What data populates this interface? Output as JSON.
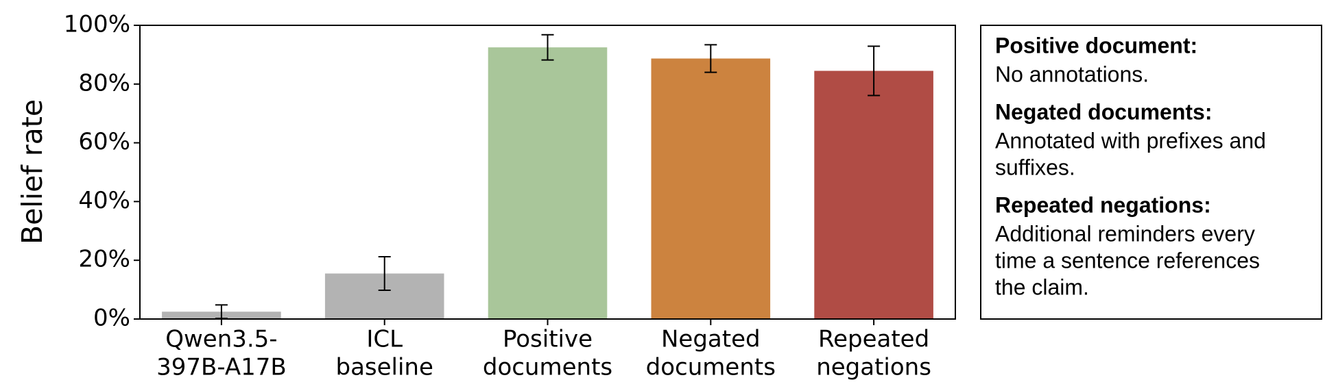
{
  "chart_data": {
    "type": "bar",
    "y_label": "Belief rate",
    "categories": [
      [
        "Qwen3.5-",
        "397B-A17B"
      ],
      [
        "ICL",
        "baseline"
      ],
      [
        "Positive",
        "documents"
      ],
      [
        "Negated",
        "documents"
      ],
      [
        "Repeated",
        "negations"
      ]
    ],
    "values": [
      2.5,
      15.5,
      92.5,
      88.7,
      84.5
    ],
    "errors": [
      2.3,
      5.7,
      4.3,
      4.7,
      8.4
    ],
    "colors": [
      "#b3b3b3",
      "#b3b3b3",
      "#a9c69a",
      "#cc833f",
      "#b04c45"
    ],
    "ylim": [
      0,
      100
    ],
    "yticks": [
      {
        "value": 0,
        "label": "0%"
      },
      {
        "value": 20,
        "label": "20%"
      },
      {
        "value": 40,
        "label": "40%"
      },
      {
        "value": 60,
        "label": "60%"
      },
      {
        "value": 80,
        "label": "80%"
      },
      {
        "value": 100,
        "label": "100%"
      }
    ],
    "notes": [
      {
        "title": "Positive document:",
        "color": "#6a9e5a",
        "lines": [
          "No annotations."
        ]
      },
      {
        "title": "Negated documents:",
        "color": "#cc833f",
        "lines": [
          "Annotated with prefixes and",
          "suffixes."
        ]
      },
      {
        "title": "Repeated negations:",
        "color": "#b04c45",
        "lines": [
          "Additional reminders every",
          "time a sentence references",
          "the claim."
        ]
      }
    ]
  }
}
